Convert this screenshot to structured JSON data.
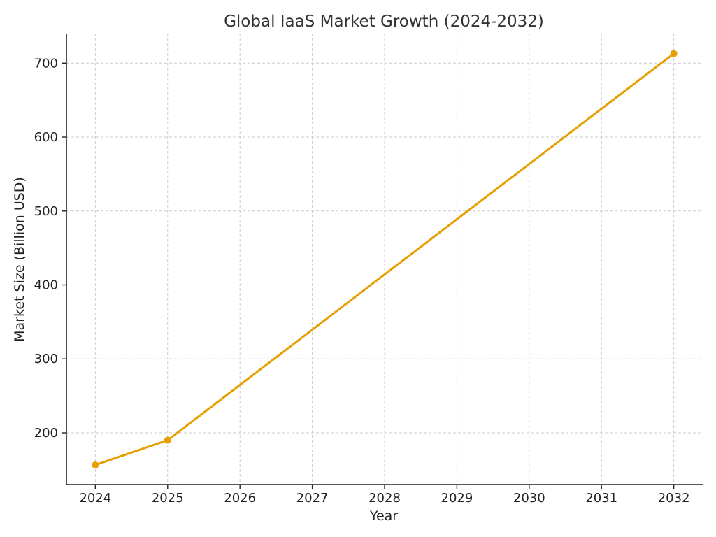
{
  "chart_data": {
    "type": "line",
    "title": "Global IaaS Market Growth (2024-2032)",
    "xlabel": "Year",
    "ylabel": "Market Size (Billion USD)",
    "x_ticks": [
      "2024",
      "2025",
      "2026",
      "2027",
      "2028",
      "2029",
      "2030",
      "2031",
      "2032"
    ],
    "y_ticks": [
      200,
      300,
      400,
      500,
      600,
      700
    ],
    "xlim": [
      2023.6,
      2032.4
    ],
    "ylim": [
      130,
      740
    ],
    "grid": true,
    "series": [
      {
        "color": "#e69f00",
        "x": [
          2024,
          2025,
          2032
        ],
        "y": [
          156.5,
          190,
          713
        ]
      }
    ]
  }
}
